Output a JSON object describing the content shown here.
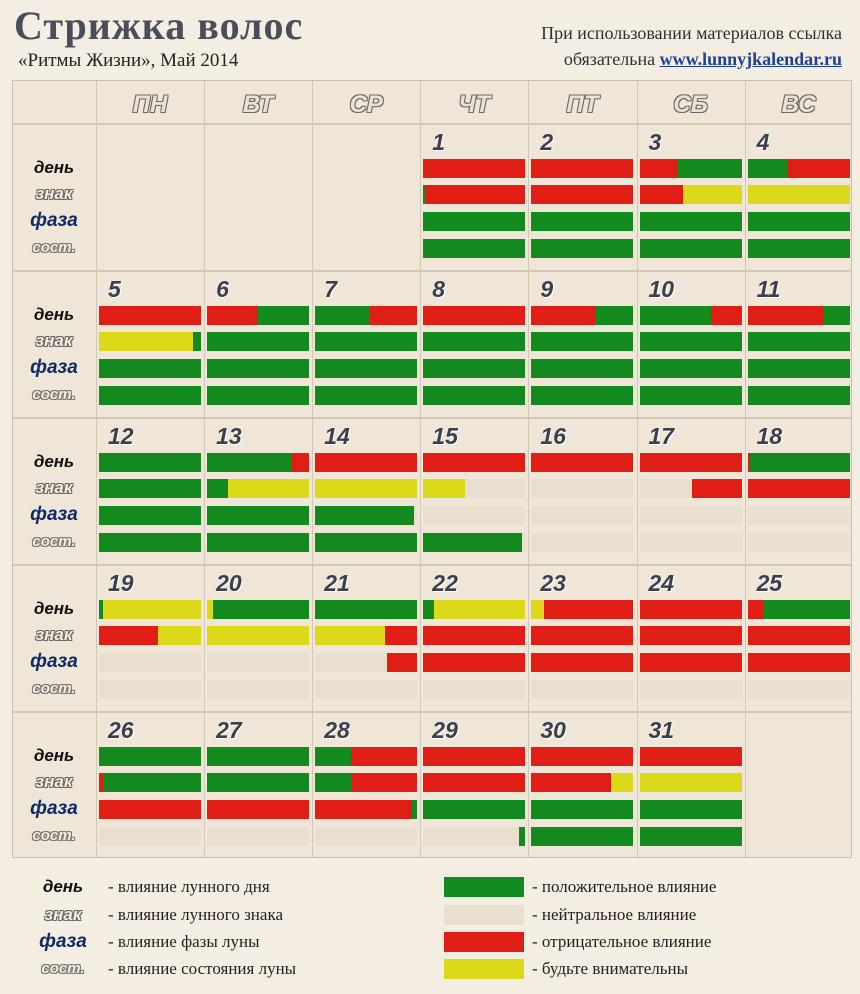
{
  "header": {
    "title": "Стрижка волос",
    "subtitle": "«Ритмы Жизни», Май 2014",
    "notice_line1": "При использовании материалов ссылка",
    "notice_line2": "обязательна",
    "notice_link": "www.lunnyjkalendar.ru"
  },
  "colors": {
    "G": "#138a1e",
    "R": "#e01e16",
    "Y": "#dcd81a",
    "N": "#eadfce"
  },
  "weekdays": [
    "ПН",
    "ВТ",
    "СР",
    "ЧТ",
    "ПТ",
    "СБ",
    "ВС"
  ],
  "row_labels": {
    "day": "день",
    "sign": "знак",
    "phase": "фаза",
    "state": "сост."
  },
  "days": [
    {
      "d": "1",
      "col": 3,
      "week": 0,
      "bars": [
        [
          [
            "R",
            100
          ]
        ],
        [
          [
            "G",
            3
          ],
          [
            "R",
            97
          ]
        ],
        [
          [
            "G",
            100
          ]
        ],
        [
          [
            "G",
            100
          ]
        ]
      ]
    },
    {
      "d": "2",
      "col": 4,
      "week": 0,
      "bars": [
        [
          [
            "R",
            100
          ]
        ],
        [
          [
            "R",
            100
          ]
        ],
        [
          [
            "G",
            100
          ]
        ],
        [
          [
            "G",
            100
          ]
        ]
      ]
    },
    {
      "d": "3",
      "col": 5,
      "week": 0,
      "bars": [
        [
          [
            "R",
            38
          ],
          [
            "G",
            62
          ]
        ],
        [
          [
            "R",
            43
          ],
          [
            "Y",
            57
          ]
        ],
        [
          [
            "G",
            100
          ]
        ],
        [
          [
            "G",
            100
          ]
        ]
      ]
    },
    {
      "d": "4",
      "col": 6,
      "week": 0,
      "bars": [
        [
          [
            "G",
            40
          ],
          [
            "R",
            60
          ]
        ],
        [
          [
            "Y",
            100
          ]
        ],
        [
          [
            "G",
            100
          ]
        ],
        [
          [
            "G",
            100
          ]
        ]
      ]
    },
    {
      "d": "5",
      "col": 0,
      "week": 1,
      "bars": [
        [
          [
            "R",
            100
          ]
        ],
        [
          [
            "Y",
            92
          ],
          [
            "G",
            8
          ]
        ],
        [
          [
            "G",
            100
          ]
        ],
        [
          [
            "G",
            100
          ]
        ]
      ]
    },
    {
      "d": "6",
      "col": 1,
      "week": 1,
      "bars": [
        [
          [
            "R",
            49
          ],
          [
            "G",
            51
          ]
        ],
        [
          [
            "G",
            100
          ]
        ],
        [
          [
            "G",
            100
          ]
        ],
        [
          [
            "G",
            100
          ]
        ]
      ]
    },
    {
      "d": "7",
      "col": 2,
      "week": 1,
      "bars": [
        [
          [
            "G",
            54
          ],
          [
            "R",
            46
          ]
        ],
        [
          [
            "G",
            100
          ]
        ],
        [
          [
            "G",
            100
          ]
        ],
        [
          [
            "G",
            100
          ]
        ]
      ]
    },
    {
      "d": "8",
      "col": 3,
      "week": 1,
      "bars": [
        [
          [
            "R",
            100
          ]
        ],
        [
          [
            "G",
            100
          ]
        ],
        [
          [
            "G",
            100
          ]
        ],
        [
          [
            "G",
            100
          ]
        ]
      ]
    },
    {
      "d": "9",
      "col": 4,
      "week": 1,
      "bars": [
        [
          [
            "R",
            62
          ],
          [
            "G",
            38
          ]
        ],
        [
          [
            "G",
            100
          ]
        ],
        [
          [
            "G",
            100
          ]
        ],
        [
          [
            "G",
            100
          ]
        ]
      ]
    },
    {
      "d": "10",
      "col": 5,
      "week": 1,
      "bars": [
        [
          [
            "G",
            70
          ],
          [
            "R",
            30
          ]
        ],
        [
          [
            "G",
            100
          ]
        ],
        [
          [
            "G",
            100
          ]
        ],
        [
          [
            "G",
            100
          ]
        ]
      ]
    },
    {
      "d": "11",
      "col": 6,
      "week": 1,
      "bars": [
        [
          [
            "R",
            75
          ],
          [
            "G",
            25
          ]
        ],
        [
          [
            "G",
            100
          ]
        ],
        [
          [
            "G",
            100
          ]
        ],
        [
          [
            "G",
            100
          ]
        ]
      ]
    },
    {
      "d": "12",
      "col": 0,
      "week": 2,
      "bars": [
        [
          [
            "G",
            100
          ]
        ],
        [
          [
            "G",
            100
          ]
        ],
        [
          [
            "G",
            100
          ]
        ],
        [
          [
            "G",
            100
          ]
        ]
      ]
    },
    {
      "d": "13",
      "col": 1,
      "week": 2,
      "bars": [
        [
          [
            "G",
            82
          ],
          [
            "R",
            18
          ]
        ],
        [
          [
            "G",
            20
          ],
          [
            "Y",
            80
          ]
        ],
        [
          [
            "G",
            100
          ]
        ],
        [
          [
            "G",
            100
          ]
        ]
      ]
    },
    {
      "d": "14",
      "col": 2,
      "week": 2,
      "bars": [
        [
          [
            "R",
            100
          ]
        ],
        [
          [
            "Y",
            100
          ]
        ],
        [
          [
            "G",
            97
          ],
          [
            "N",
            3
          ]
        ],
        [
          [
            "G",
            100
          ]
        ]
      ]
    },
    {
      "d": "15",
      "col": 3,
      "week": 2,
      "bars": [
        [
          [
            "R",
            100
          ]
        ],
        [
          [
            "Y",
            41
          ],
          [
            "N",
            59
          ]
        ],
        [
          [
            "N",
            100
          ]
        ],
        [
          [
            "G",
            97
          ],
          [
            "N",
            3
          ]
        ]
      ]
    },
    {
      "d": "16",
      "col": 4,
      "week": 2,
      "bars": [
        [
          [
            "R",
            100
          ]
        ],
        [
          [
            "N",
            100
          ]
        ],
        [
          [
            "N",
            100
          ]
        ],
        [
          [
            "N",
            100
          ]
        ]
      ]
    },
    {
      "d": "17",
      "col": 5,
      "week": 2,
      "bars": [
        [
          [
            "R",
            100
          ]
        ],
        [
          [
            "N",
            51
          ],
          [
            "R",
            49
          ]
        ],
        [
          [
            "N",
            100
          ]
        ],
        [
          [
            "N",
            100
          ]
        ]
      ]
    },
    {
      "d": "18",
      "col": 6,
      "week": 2,
      "bars": [
        [
          [
            "R",
            2
          ],
          [
            "G",
            98
          ]
        ],
        [
          [
            "R",
            100
          ]
        ],
        [
          [
            "N",
            100
          ]
        ],
        [
          [
            "N",
            100
          ]
        ]
      ]
    },
    {
      "d": "19",
      "col": 0,
      "week": 3,
      "bars": [
        [
          [
            "G",
            4
          ],
          [
            "Y",
            96
          ]
        ],
        [
          [
            "R",
            58
          ],
          [
            "Y",
            42
          ]
        ],
        [
          [
            "N",
            100
          ]
        ],
        [
          [
            "N",
            100
          ]
        ]
      ]
    },
    {
      "d": "20",
      "col": 1,
      "week": 3,
      "bars": [
        [
          [
            "Y",
            6
          ],
          [
            "G",
            94
          ]
        ],
        [
          [
            "Y",
            100
          ]
        ],
        [
          [
            "N",
            100
          ]
        ],
        [
          [
            "N",
            100
          ]
        ]
      ]
    },
    {
      "d": "21",
      "col": 2,
      "week": 3,
      "bars": [
        [
          [
            "G",
            100
          ]
        ],
        [
          [
            "Y",
            68
          ],
          [
            "R",
            32
          ]
        ],
        [
          [
            "N",
            70
          ],
          [
            "R",
            30
          ]
        ],
        [
          [
            "N",
            100
          ]
        ]
      ]
    },
    {
      "d": "22",
      "col": 3,
      "week": 3,
      "bars": [
        [
          [
            "G",
            10
          ],
          [
            "Y",
            90
          ]
        ],
        [
          [
            "R",
            100
          ]
        ],
        [
          [
            "R",
            100
          ]
        ],
        [
          [
            "N",
            100
          ]
        ]
      ]
    },
    {
      "d": "23",
      "col": 4,
      "week": 3,
      "bars": [
        [
          [
            "Y",
            12
          ],
          [
            "R",
            88
          ]
        ],
        [
          [
            "R",
            100
          ]
        ],
        [
          [
            "R",
            100
          ]
        ],
        [
          [
            "N",
            100
          ]
        ]
      ]
    },
    {
      "d": "24",
      "col": 5,
      "week": 3,
      "bars": [
        [
          [
            "R",
            100
          ]
        ],
        [
          [
            "R",
            100
          ]
        ],
        [
          [
            "R",
            100
          ]
        ],
        [
          [
            "N",
            100
          ]
        ]
      ]
    },
    {
      "d": "25",
      "col": 6,
      "week": 3,
      "bars": [
        [
          [
            "R",
            15
          ],
          [
            "G",
            85
          ]
        ],
        [
          [
            "R",
            100
          ]
        ],
        [
          [
            "R",
            100
          ]
        ],
        [
          [
            "N",
            100
          ]
        ]
      ]
    },
    {
      "d": "26",
      "col": 0,
      "week": 4,
      "bars": [
        [
          [
            "G",
            100
          ]
        ],
        [
          [
            "R",
            4
          ],
          [
            "G",
            96
          ]
        ],
        [
          [
            "R",
            100
          ]
        ],
        [
          [
            "N",
            100
          ]
        ]
      ]
    },
    {
      "d": "27",
      "col": 1,
      "week": 4,
      "bars": [
        [
          [
            "G",
            100
          ]
        ],
        [
          [
            "G",
            100
          ]
        ],
        [
          [
            "R",
            100
          ]
        ],
        [
          [
            "N",
            100
          ]
        ]
      ]
    },
    {
      "d": "28",
      "col": 2,
      "week": 4,
      "bars": [
        [
          [
            "G",
            35
          ],
          [
            "R",
            65
          ]
        ],
        [
          [
            "G",
            36
          ],
          [
            "R",
            64
          ]
        ],
        [
          [
            "R",
            95
          ],
          [
            "G",
            5
          ]
        ],
        [
          [
            "N",
            100
          ]
        ]
      ]
    },
    {
      "d": "29",
      "col": 3,
      "week": 4,
      "bars": [
        [
          [
            "R",
            100
          ]
        ],
        [
          [
            "R",
            100
          ]
        ],
        [
          [
            "G",
            100
          ]
        ],
        [
          [
            "N",
            94
          ],
          [
            "G",
            6
          ]
        ]
      ]
    },
    {
      "d": "30",
      "col": 4,
      "week": 4,
      "bars": [
        [
          [
            "R",
            100
          ]
        ],
        [
          [
            "R",
            78
          ],
          [
            "Y",
            22
          ]
        ],
        [
          [
            "G",
            100
          ]
        ],
        [
          [
            "G",
            100
          ]
        ]
      ]
    },
    {
      "d": "31",
      "col": 5,
      "week": 4,
      "bars": [
        [
          [
            "R",
            100
          ]
        ],
        [
          [
            "Y",
            100
          ]
        ],
        [
          [
            "G",
            100
          ]
        ],
        [
          [
            "G",
            100
          ]
        ]
      ]
    }
  ],
  "legend": {
    "left": [
      {
        "key": "day",
        "label": "день",
        "text": "- влияние лунного дня"
      },
      {
        "key": "sign",
        "label": "знак",
        "text": "- влияние лунного знака"
      },
      {
        "key": "phase",
        "label": "фаза",
        "text": "- влияние фазы луны"
      },
      {
        "key": "state",
        "label": "сост.",
        "text": "- влияние состояния луны"
      }
    ],
    "right": [
      {
        "color": "G",
        "text": "- положительное влияние"
      },
      {
        "color": "N",
        "text": "- нейтральное влияние"
      },
      {
        "color": "R",
        "text": "- отрицательное влияние"
      },
      {
        "color": "Y",
        "text": "- будьте внимательны"
      }
    ]
  }
}
